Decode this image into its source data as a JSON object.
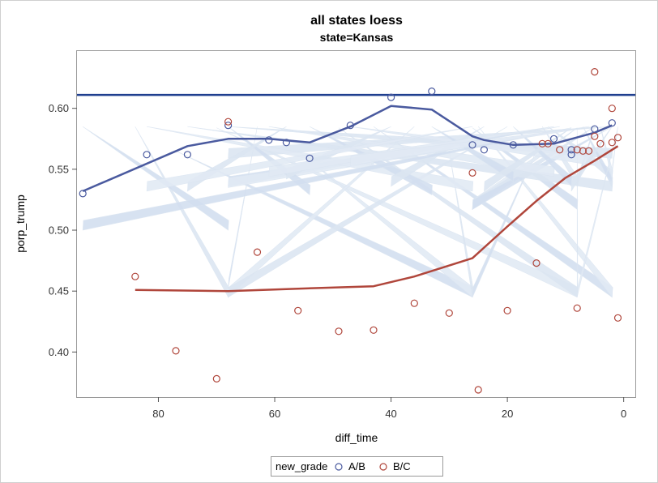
{
  "chart_data": {
    "type": "scatter",
    "title": "all states loess",
    "subtitle": "state=Kansas",
    "xlabel": "diff_time",
    "ylabel": "porp_trump",
    "xlim": [
      94,
      -2
    ],
    "ylim": [
      0.363,
      0.647
    ],
    "x_reversed": true,
    "x_ticks": [
      80,
      60,
      40,
      20,
      0
    ],
    "x_tick_labels": [
      "80",
      "60",
      "40",
      "20",
      "0"
    ],
    "y_ticks": [
      0.4,
      0.45,
      0.5,
      0.55,
      0.6
    ],
    "y_tick_labels": [
      "0.40",
      "0.45",
      "0.50",
      "0.55",
      "0.60"
    ],
    "grid": false,
    "legend": {
      "placement": "bottom",
      "title": "new_grade",
      "entries": [
        {
          "label": "A/B",
          "color": "#4a5a9f"
        },
        {
          "label": "B/C",
          "color": "#b0463b"
        }
      ]
    },
    "reference_line": {
      "y": 0.611,
      "color": "#1f3f8f"
    },
    "series": [
      {
        "name": "A/B",
        "color": "#4a5a9f",
        "points": [
          [
            93,
            0.53
          ],
          [
            82,
            0.562
          ],
          [
            75,
            0.562
          ],
          [
            68,
            0.586
          ],
          [
            61,
            0.574
          ],
          [
            58,
            0.572
          ],
          [
            54,
            0.559
          ],
          [
            47,
            0.586
          ],
          [
            40,
            0.609
          ],
          [
            33,
            0.614
          ],
          [
            26,
            0.57
          ],
          [
            24,
            0.566
          ],
          [
            19,
            0.57
          ],
          [
            12,
            0.575
          ],
          [
            9,
            0.562
          ],
          [
            9,
            0.566
          ],
          [
            5,
            0.583
          ],
          [
            2,
            0.588
          ]
        ],
        "loess": [
          [
            93,
            0.532
          ],
          [
            75,
            0.569
          ],
          [
            68,
            0.575
          ],
          [
            61,
            0.575
          ],
          [
            54,
            0.572
          ],
          [
            47,
            0.585
          ],
          [
            40,
            0.602
          ],
          [
            33,
            0.599
          ],
          [
            26,
            0.577
          ],
          [
            24,
            0.574
          ],
          [
            19,
            0.57
          ],
          [
            12,
            0.571
          ],
          [
            5,
            0.58
          ],
          [
            2,
            0.586
          ]
        ]
      },
      {
        "name": "B/C",
        "color": "#b0463b",
        "points": [
          [
            84,
            0.462
          ],
          [
            77,
            0.401
          ],
          [
            70,
            0.378
          ],
          [
            68,
            0.589
          ],
          [
            63,
            0.482
          ],
          [
            56,
            0.434
          ],
          [
            49,
            0.417
          ],
          [
            43,
            0.418
          ],
          [
            36,
            0.44
          ],
          [
            30,
            0.432
          ],
          [
            26,
            0.547
          ],
          [
            25,
            0.369
          ],
          [
            20,
            0.434
          ],
          [
            15,
            0.473
          ],
          [
            14,
            0.571
          ],
          [
            13,
            0.571
          ],
          [
            11,
            0.566
          ],
          [
            8,
            0.566
          ],
          [
            7,
            0.565
          ],
          [
            8,
            0.436
          ],
          [
            6,
            0.565
          ],
          [
            5,
            0.63
          ],
          [
            5,
            0.577
          ],
          [
            4,
            0.571
          ],
          [
            2,
            0.6
          ],
          [
            2,
            0.572
          ],
          [
            1,
            0.428
          ],
          [
            1,
            0.576
          ]
        ],
        "loess": [
          [
            84,
            0.451
          ],
          [
            68,
            0.45
          ],
          [
            56,
            0.452
          ],
          [
            43,
            0.454
          ],
          [
            36,
            0.462
          ],
          [
            26,
            0.477
          ],
          [
            20,
            0.503
          ],
          [
            15,
            0.524
          ],
          [
            10,
            0.543
          ],
          [
            5,
            0.557
          ],
          [
            1,
            0.569
          ]
        ]
      }
    ]
  }
}
